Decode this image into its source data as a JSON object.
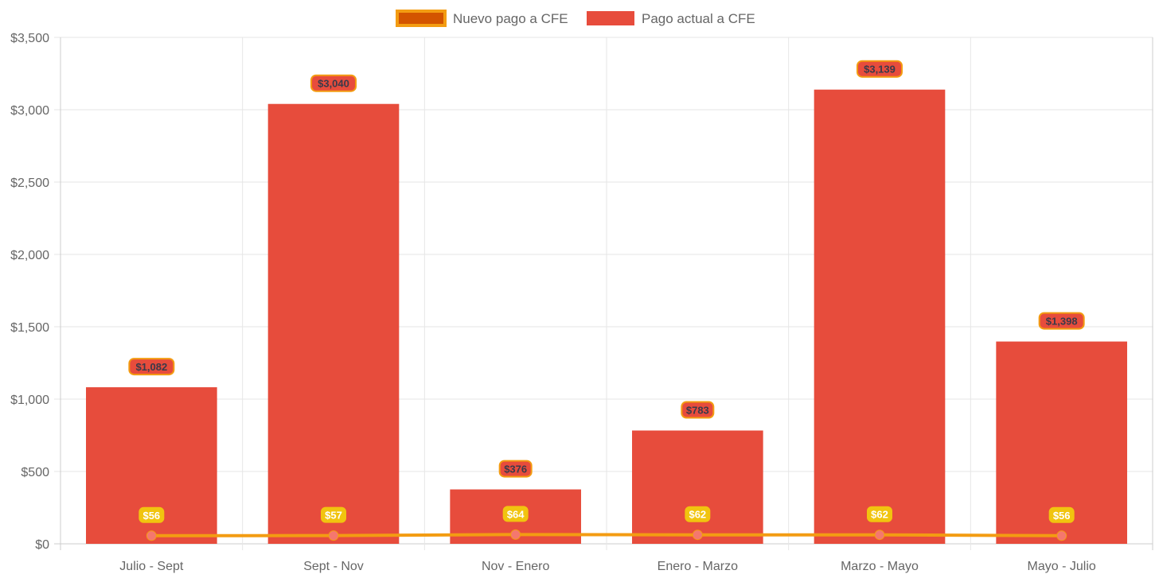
{
  "chart_data": {
    "type": "bar",
    "categories": [
      "Julio - Sept",
      "Sept - Nov",
      "Nov - Enero",
      "Enero - Marzo",
      "Marzo - Mayo",
      "Mayo - Julio"
    ],
    "series": [
      {
        "name": "Pago actual a CFE",
        "kind": "bar",
        "values": [
          1082,
          3040,
          376,
          783,
          3139,
          1398
        ],
        "value_labels": [
          "$1,082",
          "$3,040",
          "$376",
          "$783",
          "$3,139",
          "$1,398"
        ],
        "color": "#e74c3c",
        "label_border_color": "#f39c12"
      },
      {
        "name": "Nuevo pago a CFE",
        "kind": "line",
        "values": [
          56,
          57,
          64,
          62,
          62,
          56
        ],
        "value_labels": [
          "$56",
          "$57",
          "$64",
          "$62",
          "$62",
          "$56"
        ],
        "color": "#f39c12",
        "legend_fill": "#d35400",
        "point_color": "#f5776e",
        "label_bg": "#f1c40f"
      }
    ],
    "ylim": [
      0,
      3500
    ],
    "ytick_values": [
      0,
      500,
      1000,
      1500,
      2000,
      2500,
      3000,
      3500
    ],
    "ytick_labels": [
      "$0",
      "$500",
      "$1,000",
      "$1,500",
      "$2,000",
      "$2,500",
      "$3,000",
      "$3,500"
    ],
    "legend": {
      "position": "top-center",
      "entries": [
        "Nuevo pago a CFE",
        "Pago actual a CFE"
      ]
    },
    "grid": true,
    "title": "",
    "xlabel": "",
    "ylabel": ""
  }
}
